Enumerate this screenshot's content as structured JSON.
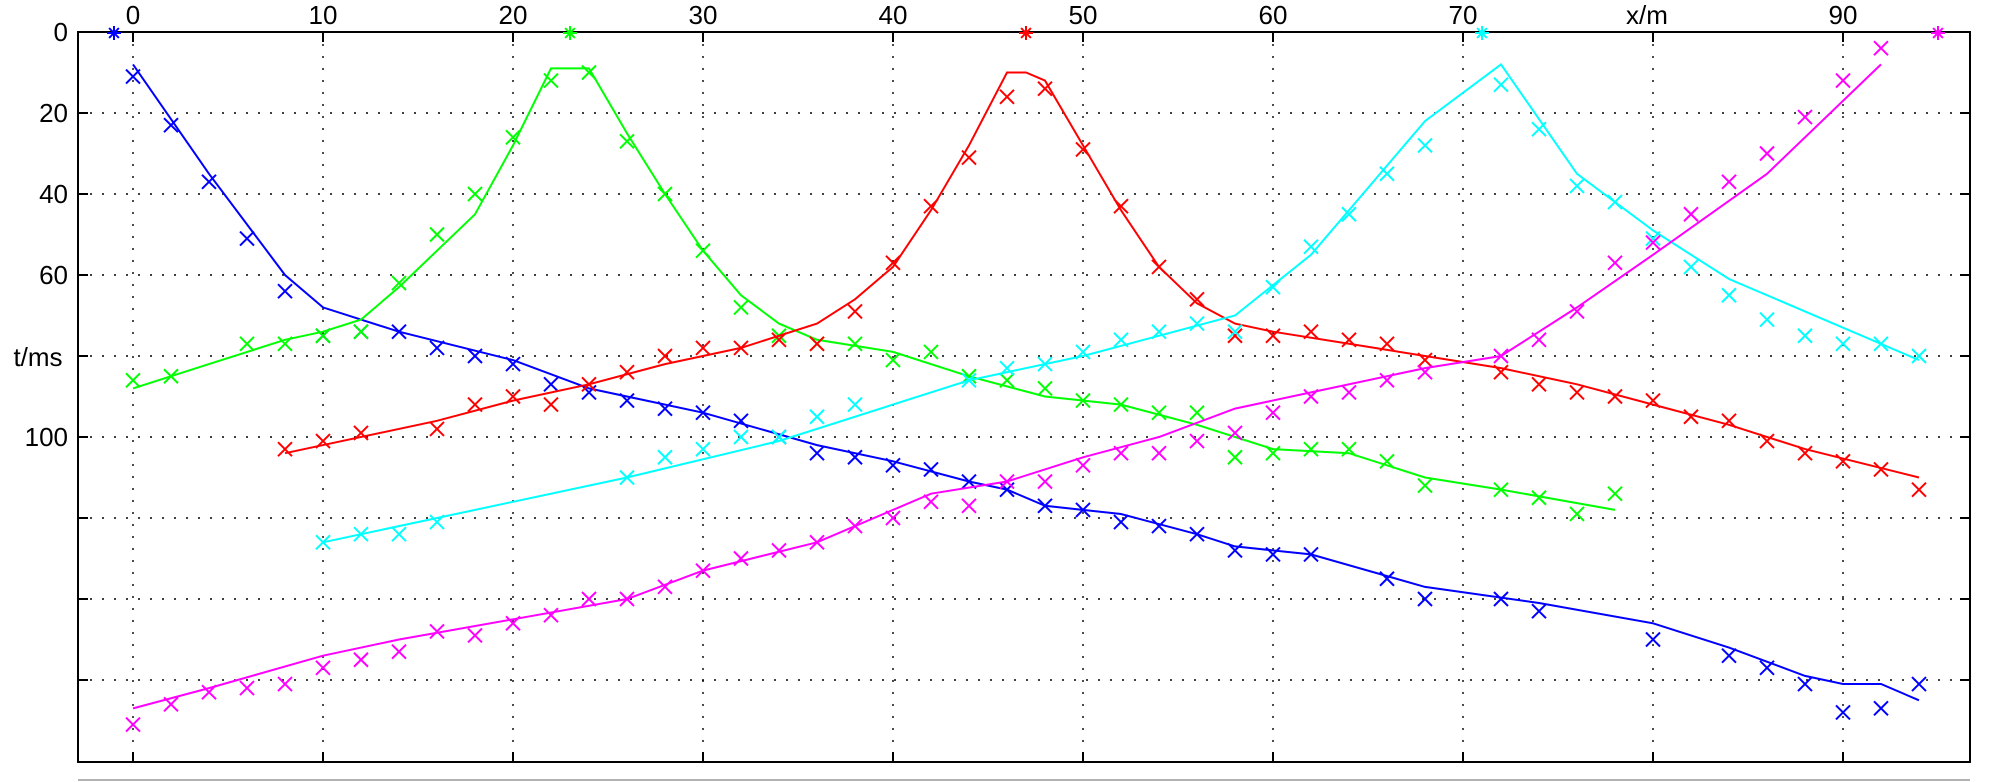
{
  "chart_data": {
    "type": "scatter",
    "xlabel": "x/m",
    "ylabel": "t/ms",
    "xlim": [
      -3,
      95
    ],
    "ylim": [
      180,
      0
    ],
    "x_axis_position": "top",
    "y_inverted": true,
    "grid": true,
    "x_ticks": [
      0,
      10,
      20,
      30,
      40,
      50,
      60,
      70,
      80,
      90
    ],
    "x_tick_labels": [
      "0",
      "10",
      "20",
      "30",
      "40",
      "50",
      "60",
      "70",
      "",
      "90"
    ],
    "y_ticks": [
      0,
      20,
      40,
      60,
      80,
      100,
      120,
      140,
      160
    ],
    "y_tick_labels": [
      "0",
      "20",
      "40",
      "60",
      "",
      "100",
      "",
      "",
      ""
    ],
    "series": [
      {
        "color": "#0000ff",
        "source_x": -1,
        "points_x": [
          0,
          2,
          4,
          6,
          8,
          10,
          12,
          14,
          16,
          18,
          20,
          22,
          24,
          26,
          28,
          30,
          32,
          34,
          36,
          38,
          40,
          42,
          44,
          46,
          48,
          50,
          52,
          54,
          56,
          58,
          60,
          62,
          66,
          68,
          72,
          74,
          80,
          84,
          86,
          88,
          90,
          92,
          94
        ],
        "points_t": [
          11,
          23,
          37,
          51,
          64,
          75,
          74,
          74,
          78,
          80,
          82,
          87,
          89,
          91,
          93,
          94,
          96,
          100,
          104,
          105,
          107,
          108,
          111,
          113,
          117,
          118,
          121,
          122,
          124,
          128,
          129,
          129,
          135,
          140,
          140,
          143,
          150,
          154,
          157,
          161,
          168,
          167,
          161
        ],
        "line_x": [
          0,
          4,
          8,
          10,
          14,
          20,
          24,
          30,
          36,
          40,
          44,
          46,
          48,
          52,
          56,
          58,
          62,
          68,
          74,
          80,
          84,
          88,
          90,
          92,
          94
        ],
        "line_t": [
          8,
          35,
          60,
          68,
          74,
          81,
          88,
          94,
          102,
          106,
          111,
          113,
          117,
          119,
          124,
          127,
          129,
          137,
          141,
          146,
          152,
          159,
          161,
          161,
          165
        ]
      },
      {
        "color": "#00ff00",
        "source_x": 23,
        "points_x": [
          0,
          2,
          6,
          8,
          10,
          12,
          14,
          16,
          18,
          20,
          22,
          24,
          26,
          28,
          30,
          32,
          34,
          36,
          38,
          40,
          42,
          44,
          46,
          48,
          50,
          52,
          54,
          56,
          58,
          60,
          62,
          64,
          66,
          68,
          72,
          74,
          76,
          78
        ],
        "points_t": [
          86,
          85,
          77,
          77,
          75,
          74,
          62,
          50,
          40,
          26,
          12,
          10,
          27,
          40,
          54,
          68,
          75,
          77,
          77,
          81,
          79,
          85,
          86,
          88,
          91,
          92,
          94,
          94,
          105,
          104,
          103,
          103,
          106,
          112,
          113,
          115,
          119,
          114
        ],
        "line_x": [
          0,
          4,
          8,
          10,
          12,
          14,
          18,
          20,
          22,
          24,
          26,
          28,
          30,
          32,
          34,
          36,
          40,
          44,
          48,
          52,
          56,
          60,
          64,
          68,
          72,
          78
        ],
        "line_t": [
          88,
          82,
          76,
          74,
          71,
          63,
          45,
          28,
          9,
          9,
          25,
          40,
          54,
          65,
          72,
          76,
          79,
          85,
          90,
          92,
          97,
          103,
          104,
          110,
          113,
          118
        ]
      },
      {
        "color": "#ff0000",
        "source_x": 47,
        "points_x": [
          8,
          10,
          12,
          16,
          18,
          20,
          22,
          24,
          26,
          28,
          30,
          32,
          34,
          36,
          38,
          40,
          42,
          44,
          46,
          48,
          50,
          52,
          54,
          56,
          58,
          60,
          62,
          64,
          66,
          68,
          72,
          74,
          76,
          78,
          80,
          82,
          84,
          86,
          88,
          90,
          92,
          94
        ],
        "points_t": [
          103,
          101,
          99,
          98,
          92,
          90,
          92,
          87,
          84,
          80,
          78,
          78,
          76,
          77,
          69,
          57,
          43,
          31,
          16,
          14,
          29,
          43,
          58,
          66,
          75,
          75,
          74,
          76,
          77,
          81,
          84,
          87,
          89,
          90,
          91,
          95,
          96,
          101,
          104,
          106,
          108,
          113
        ],
        "line_x": [
          8,
          16,
          20,
          24,
          28,
          32,
          36,
          38,
          40,
          42,
          44,
          46,
          47,
          48,
          50,
          52,
          54,
          56,
          58,
          60,
          64,
          68,
          72,
          76,
          80,
          84,
          88,
          94
        ],
        "line_t": [
          104,
          96,
          91,
          87,
          82,
          78,
          72,
          66,
          58,
          44,
          28,
          10,
          10,
          12,
          28,
          44,
          58,
          67,
          72,
          74,
          77,
          80,
          83,
          87,
          92,
          97,
          103,
          110
        ]
      },
      {
        "color": "#00ffff",
        "source_x": 71,
        "points_x": [
          10,
          12,
          14,
          16,
          26,
          28,
          30,
          32,
          34,
          36,
          38,
          44,
          46,
          48,
          50,
          52,
          54,
          56,
          58,
          60,
          62,
          64,
          66,
          68,
          72,
          74,
          76,
          78,
          80,
          82,
          84,
          86,
          88,
          90,
          92,
          94
        ],
        "points_t": [
          126,
          124,
          124,
          121,
          110,
          105,
          103,
          100,
          100,
          95,
          92,
          86,
          83,
          82,
          79,
          76,
          74,
          72,
          74,
          63,
          53,
          45,
          35,
          28,
          13,
          24,
          38,
          42,
          51,
          58,
          65,
          71,
          75,
          77,
          77,
          80
        ],
        "line_x": [
          10,
          16,
          26,
          34,
          44,
          50,
          58,
          62,
          68,
          72,
          76,
          80,
          84,
          88,
          94
        ],
        "line_t": [
          126,
          120,
          110,
          101,
          86,
          80,
          70,
          55,
          22,
          8,
          35,
          49,
          61,
          69,
          81
        ]
      },
      {
        "color": "#ff00ff",
        "source_x": 95,
        "points_x": [
          0,
          2,
          4,
          6,
          8,
          10,
          12,
          14,
          16,
          18,
          20,
          22,
          24,
          26,
          28,
          30,
          32,
          34,
          36,
          38,
          40,
          42,
          44,
          46,
          48,
          50,
          52,
          54,
          56,
          58,
          60,
          62,
          64,
          66,
          68,
          72,
          74,
          76,
          78,
          80,
          82,
          84,
          86,
          88,
          90,
          92
        ],
        "points_t": [
          171,
          166,
          163,
          162,
          161,
          157,
          155,
          153,
          148,
          149,
          146,
          144,
          140,
          140,
          137,
          133,
          130,
          128,
          126,
          122,
          120,
          116,
          117,
          111,
          111,
          107,
          104,
          104,
          101,
          99,
          94,
          90,
          89,
          86,
          84,
          80,
          76,
          69,
          57,
          52,
          45,
          37,
          30,
          21,
          12,
          4
        ],
        "line_x": [
          0,
          4,
          10,
          14,
          20,
          26,
          30,
          36,
          42,
          46,
          50,
          54,
          58,
          62,
          68,
          72,
          76,
          80,
          86,
          92
        ],
        "line_t": [
          167,
          162,
          154,
          150,
          145,
          140,
          133,
          126,
          114,
          111,
          105,
          100,
          93,
          89,
          83,
          80,
          68,
          55,
          35,
          8
        ]
      }
    ]
  }
}
